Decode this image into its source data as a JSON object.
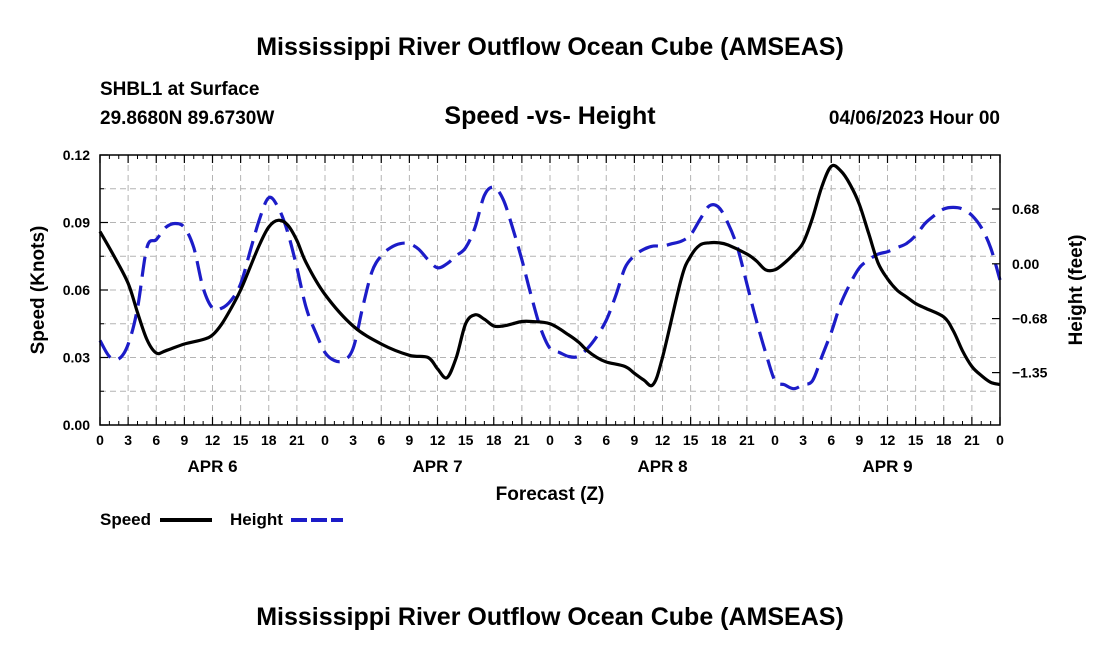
{
  "title": "Mississippi River Outflow Ocean Cube (AMSEAS)",
  "title_bottom": "Mississippi River Outflow Ocean Cube (AMSEAS)",
  "station": "SHBL1 at Surface",
  "coords": "29.8680N  89.6730W",
  "datetime": "04/06/2023 Hour 00",
  "chart_data": {
    "type": "line",
    "title": "Speed -vs- Height",
    "xlabel": "Forecast (Z)",
    "ylabel": "Speed (Knots)",
    "y2label": "Height (feet)",
    "x_hours_range": [
      0,
      96
    ],
    "xticks_hours": [
      0,
      3,
      6,
      9,
      12,
      15,
      18,
      21,
      24,
      27,
      30,
      33,
      36,
      39,
      42,
      45,
      48,
      51,
      54,
      57,
      60,
      63,
      66,
      69,
      72,
      75,
      78,
      81,
      84,
      87,
      90,
      93,
      96
    ],
    "xtick_labels": [
      "0",
      "3",
      "6",
      "9",
      "12",
      "15",
      "18",
      "21",
      "0",
      "3",
      "6",
      "9",
      "12",
      "15",
      "18",
      "21",
      "0",
      "3",
      "6",
      "9",
      "12",
      "15",
      "18",
      "21",
      "0",
      "3",
      "6",
      "9",
      "12",
      "15",
      "18",
      "21",
      "0"
    ],
    "day_labels": [
      {
        "label": "APR 6",
        "hour": 12
      },
      {
        "label": "APR 7",
        "hour": 36
      },
      {
        "label": "APR 8",
        "hour": 60
      },
      {
        "label": "APR 9",
        "hour": 84
      }
    ],
    "ylim": [
      0,
      0.12
    ],
    "yticks": [
      0,
      0.03,
      0.06,
      0.09,
      0.12
    ],
    "ytick_labels": [
      "0.00",
      "0.03",
      "0.06",
      "0.09",
      "0.12"
    ],
    "y2lim": [
      -2.0,
      1.35
    ],
    "y2ticks": [
      -1.35,
      -0.68,
      0.0,
      0.68
    ],
    "y2tick_labels": [
      "−1.35",
      "−0.68",
      "0.00",
      "0.68"
    ],
    "series": [
      {
        "name": "Speed",
        "axis": "left",
        "color": "#000000",
        "dash": "solid",
        "hours": [
          0,
          1.5,
          3,
          4,
          5,
          6,
          7,
          9,
          11,
          12,
          13,
          14,
          15,
          16,
          17,
          18,
          19,
          20,
          21,
          22,
          24,
          27,
          30,
          33,
          35,
          36,
          37,
          38,
          39,
          40,
          41,
          42,
          43,
          44,
          45,
          46,
          48,
          50,
          51,
          52,
          53,
          54,
          56,
          57,
          58,
          59,
          60,
          62,
          63,
          64,
          65,
          66,
          67,
          69,
          70,
          71,
          72,
          73,
          74,
          75,
          76,
          77,
          78,
          79,
          80,
          81,
          82,
          83,
          84,
          85,
          86,
          87,
          88,
          90,
          91,
          92,
          93,
          94,
          95,
          96
        ],
        "values": [
          0.086,
          0.075,
          0.063,
          0.05,
          0.038,
          0.032,
          0.033,
          0.036,
          0.038,
          0.04,
          0.045,
          0.052,
          0.06,
          0.07,
          0.08,
          0.088,
          0.091,
          0.089,
          0.082,
          0.072,
          0.058,
          0.044,
          0.036,
          0.031,
          0.03,
          0.025,
          0.021,
          0.03,
          0.045,
          0.049,
          0.047,
          0.044,
          0.044,
          0.045,
          0.046,
          0.046,
          0.045,
          0.04,
          0.037,
          0.033,
          0.03,
          0.028,
          0.026,
          0.023,
          0.02,
          0.018,
          0.03,
          0.065,
          0.075,
          0.08,
          0.081,
          0.081,
          0.08,
          0.076,
          0.073,
          0.069,
          0.069,
          0.072,
          0.076,
          0.081,
          0.092,
          0.106,
          0.115,
          0.113,
          0.107,
          0.098,
          0.085,
          0.072,
          0.065,
          0.06,
          0.057,
          0.054,
          0.052,
          0.048,
          0.042,
          0.033,
          0.026,
          0.022,
          0.019,
          0.018
        ]
      },
      {
        "name": "Height",
        "axis": "right",
        "color": "#1c1cc8",
        "dash": "dashed",
        "hours": [
          0,
          1,
          2,
          3,
          4,
          5,
          6,
          7,
          8,
          9,
          10,
          11,
          12,
          13,
          14,
          15,
          16,
          17,
          18,
          19,
          20,
          21,
          22,
          23,
          24,
          25,
          26,
          27,
          28,
          29,
          30,
          31,
          32,
          33,
          34,
          35,
          36,
          37,
          38,
          39,
          40,
          41,
          42,
          43,
          44,
          45,
          46,
          47,
          48,
          49,
          50,
          51,
          52,
          53,
          54,
          55,
          56,
          57,
          58,
          59,
          60,
          61,
          62,
          63,
          64,
          65,
          66,
          67,
          68,
          69,
          70,
          71,
          72,
          73,
          74,
          75,
          76,
          77,
          78,
          79,
          80,
          81,
          82,
          83,
          84,
          85,
          86,
          87,
          88,
          89,
          90,
          91,
          92,
          93,
          94,
          95,
          96
        ],
        "values": [
          -0.95,
          -1.15,
          -1.18,
          -1.0,
          -0.55,
          0.2,
          0.3,
          0.45,
          0.5,
          0.45,
          0.2,
          -0.3,
          -0.55,
          -0.55,
          -0.45,
          -0.25,
          0.15,
          0.55,
          0.82,
          0.7,
          0.4,
          -0.05,
          -0.55,
          -0.85,
          -1.1,
          -1.2,
          -1.2,
          -1.05,
          -0.55,
          -0.1,
          0.1,
          0.2,
          0.25,
          0.25,
          0.18,
          0.05,
          -0.05,
          0.0,
          0.1,
          0.2,
          0.45,
          0.85,
          0.95,
          0.8,
          0.45,
          0.05,
          -0.4,
          -0.8,
          -1.05,
          -1.1,
          -1.15,
          -1.15,
          -1.05,
          -0.9,
          -0.7,
          -0.4,
          -0.05,
          0.1,
          0.18,
          0.22,
          0.22,
          0.25,
          0.28,
          0.36,
          0.55,
          0.72,
          0.7,
          0.5,
          0.2,
          -0.25,
          -0.7,
          -1.1,
          -1.45,
          -1.5,
          -1.55,
          -1.5,
          -1.45,
          -1.15,
          -0.85,
          -0.5,
          -0.25,
          -0.05,
          0.05,
          0.12,
          0.15,
          0.2,
          0.25,
          0.35,
          0.5,
          0.6,
          0.68,
          0.7,
          0.68,
          0.6,
          0.45,
          0.2,
          -0.2
        ]
      }
    ],
    "legend": [
      {
        "label": "Speed",
        "color": "#000000",
        "dash": "solid"
      },
      {
        "label": "Height",
        "color": "#1c1cc8",
        "dash": "dashed"
      }
    ]
  }
}
